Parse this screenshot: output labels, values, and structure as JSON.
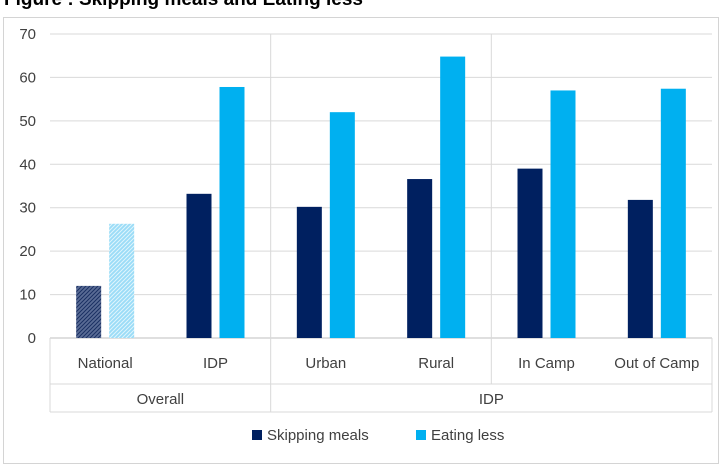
{
  "chart_data": {
    "type": "bar",
    "title": "Figure      :       Skipping meals and Eating less",
    "xlabel": "",
    "ylabel": "",
    "ylim": [
      0,
      70
    ],
    "yticks": [
      0,
      10,
      20,
      30,
      40,
      50,
      60,
      70
    ],
    "grid": true,
    "legend_position": "bottom",
    "groups": [
      {
        "label": "Overall",
        "categories": [
          "National",
          "IDP"
        ]
      },
      {
        "label": "IDP",
        "categories": [
          "Urban",
          "Rural",
          "In Camp",
          "Out of Camp"
        ]
      }
    ],
    "categories": [
      "National",
      "IDP",
      "Urban",
      "Rural",
      "In Camp",
      "Out of Camp"
    ],
    "series": [
      {
        "name": "Skipping meals",
        "color": "#002060",
        "values": [
          12,
          33.2,
          30.2,
          36.6,
          39,
          31.8
        ]
      },
      {
        "name": "Eating less",
        "color": "#00b0f0",
        "values": [
          26.3,
          57.8,
          52,
          64.8,
          57,
          57.4
        ]
      }
    ],
    "hatched_categories": [
      "National"
    ]
  }
}
